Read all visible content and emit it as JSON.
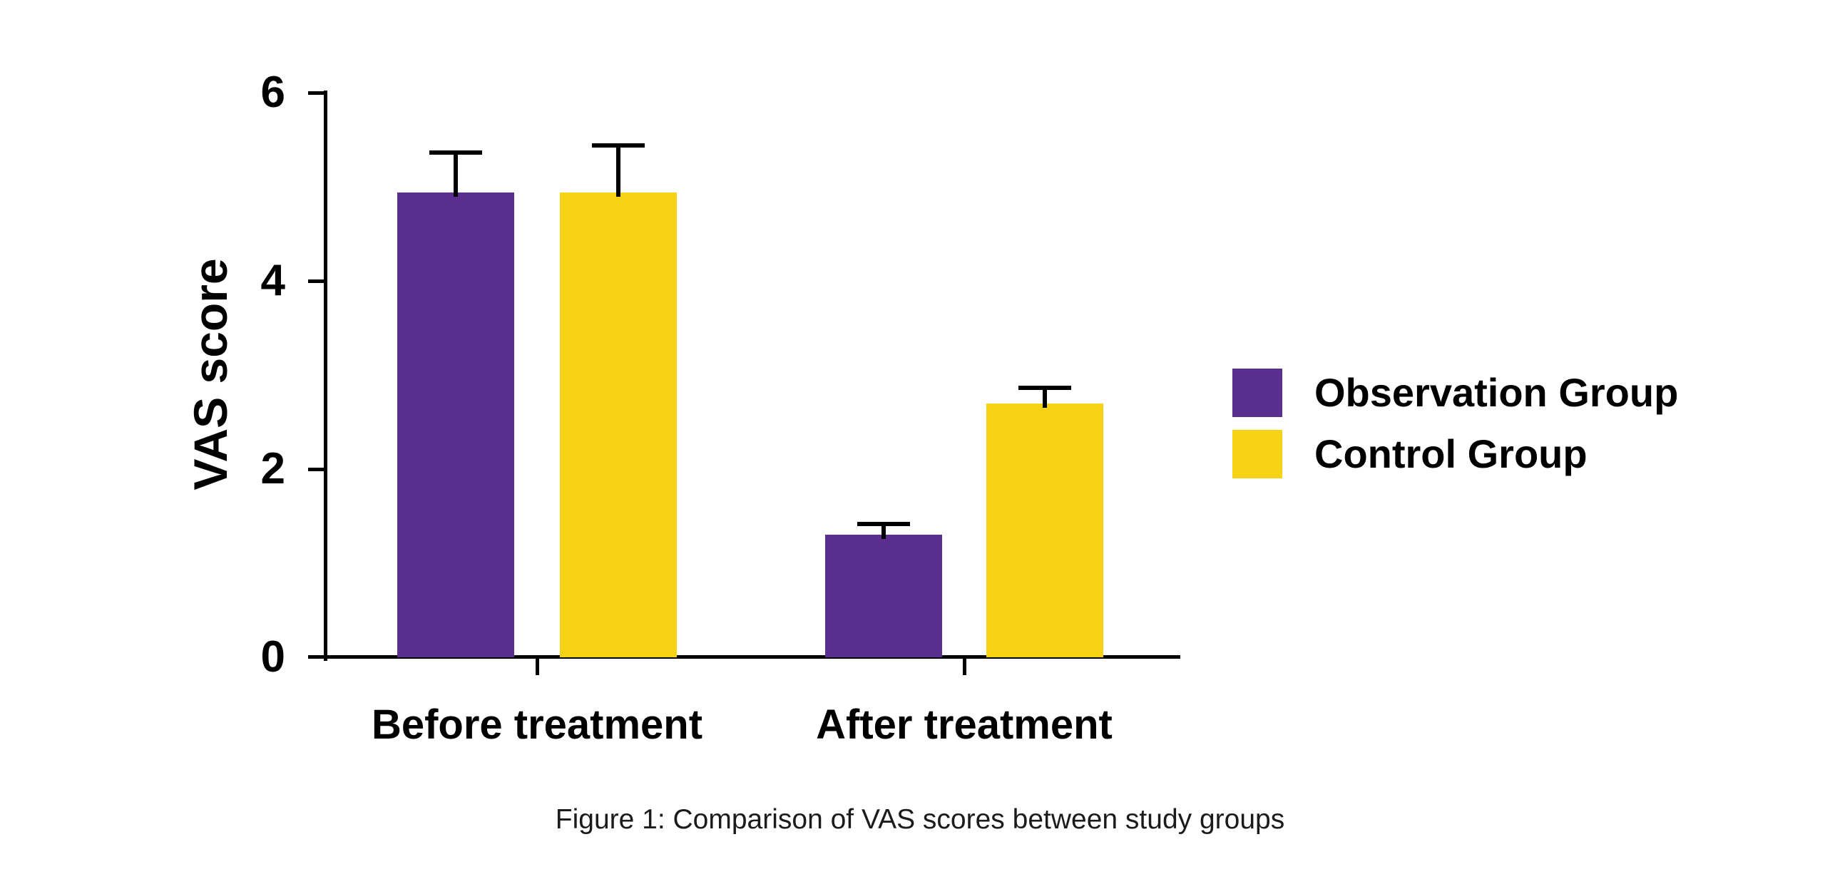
{
  "chart_data": {
    "type": "bar",
    "categories": [
      "Before treatment",
      "After treatment"
    ],
    "series": [
      {
        "name": "Observation Group",
        "color": "#5B2F90",
        "values": [
          4.94,
          1.3
        ],
        "errors_upper": [
          0.42,
          0.12
        ]
      },
      {
        "name": "Control Group",
        "color": "#F6D214",
        "values": [
          4.94,
          2.7
        ],
        "errors_upper": [
          0.5,
          0.16
        ]
      }
    ],
    "title": "",
    "xlabel": "",
    "ylabel": "VAS score",
    "yticks": [
      0,
      2,
      4,
      6
    ],
    "ylim": [
      0,
      6
    ],
    "grid": false,
    "legend_position": "right",
    "error_bars": "upper-only"
  },
  "caption": "Figure 1: Comparison of VAS scores between study groups",
  "colors": {
    "background": "#FFFFFF",
    "axis": "#000000",
    "caption_text": "#1B1B1B",
    "observation_group": "#5B2F90",
    "control_group": "#F6D214"
  }
}
